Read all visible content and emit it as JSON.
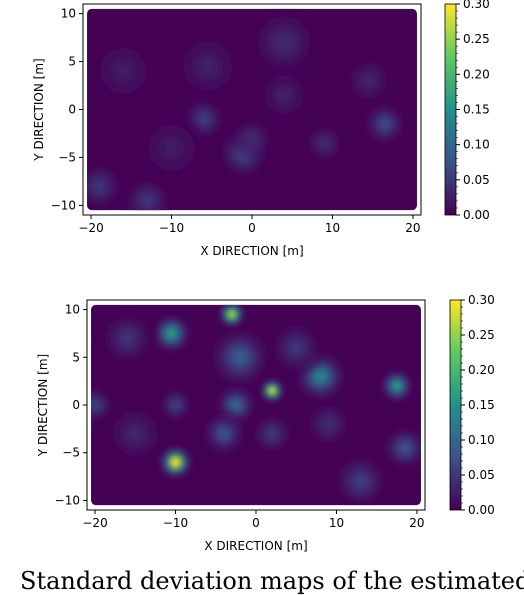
{
  "caption_fragment": "Standard deviation maps of the estimated l",
  "colormap": {
    "name": "viridis",
    "stops": [
      "#440154",
      "#3b528b",
      "#21918c",
      "#5ec962",
      "#fde725"
    ]
  },
  "chart_data": [
    {
      "type": "heatmap",
      "title": "",
      "xlabel": "X DIRECTION [m]",
      "ylabel": "Y DIRECTION [m]",
      "xlim": [
        -21,
        21
      ],
      "ylim": [
        -11,
        11
      ],
      "x_ticks": [
        -20,
        -10,
        0,
        10,
        20
      ],
      "y_ticks": [
        -10,
        -5,
        0,
        5,
        10
      ],
      "x_tick_labels": [
        "−20",
        "−10",
        "0",
        "10",
        "20"
      ],
      "y_tick_labels": [
        "−10",
        "−5",
        "0",
        "5",
        "10"
      ],
      "domain": {
        "x": [
          -20.5,
          20.5
        ],
        "y": [
          -10.5,
          10.5
        ]
      },
      "background_value": 0.0,
      "colorbar": {
        "range": [
          0.0,
          0.3
        ],
        "ticks": [
          0.0,
          0.05,
          0.1,
          0.15,
          0.2,
          0.25,
          0.3
        ],
        "tick_labels": [
          "0.00",
          "0.05",
          "0.10",
          "0.15",
          "0.20",
          "0.25",
          "0.30"
        ]
      },
      "hotspots": [
        {
          "x": -6,
          "y": -1,
          "value": 0.06,
          "spread": 1.6
        },
        {
          "x": -1,
          "y": -4.5,
          "value": 0.08,
          "spread": 1.8
        },
        {
          "x": 0,
          "y": -3,
          "value": 0.04,
          "spread": 1.6
        },
        {
          "x": 4,
          "y": 7,
          "value": 0.04,
          "spread": 2.5
        },
        {
          "x": 9,
          "y": -3.5,
          "value": 0.04,
          "spread": 1.5
        },
        {
          "x": 16.5,
          "y": -1.5,
          "value": 0.07,
          "spread": 1.6
        },
        {
          "x": 14.5,
          "y": 3,
          "value": 0.035,
          "spread": 1.8
        },
        {
          "x": -19,
          "y": -8,
          "value": 0.05,
          "spread": 1.8
        },
        {
          "x": -13,
          "y": -9.5,
          "value": 0.05,
          "spread": 1.8
        },
        {
          "x": -5.5,
          "y": 4.5,
          "value": 0.03,
          "spread": 2.5
        },
        {
          "x": 4,
          "y": 1.5,
          "value": 0.03,
          "spread": 2.0
        },
        {
          "x": -16,
          "y": 4,
          "value": 0.025,
          "spread": 2.5
        },
        {
          "x": -10,
          "y": -4,
          "value": 0.025,
          "spread": 2.5
        }
      ]
    },
    {
      "type": "heatmap",
      "title": "",
      "xlabel": "X DIRECTION [m]",
      "ylabel": "Y DIRECTION [m]",
      "xlim": [
        -21,
        21
      ],
      "ylim": [
        -11,
        11
      ],
      "x_ticks": [
        -20,
        -10,
        0,
        10,
        20
      ],
      "y_ticks": [
        -10,
        -5,
        0,
        5,
        10
      ],
      "x_tick_labels": [
        "−20",
        "−10",
        "0",
        "10",
        "20"
      ],
      "y_tick_labels": [
        "−10",
        "−5",
        "0",
        "5",
        "10"
      ],
      "domain": {
        "x": [
          -20.5,
          20.5
        ],
        "y": [
          -10.5,
          10.5
        ]
      },
      "background_value": 0.0,
      "colorbar": {
        "range": [
          0.0,
          0.3
        ],
        "ticks": [
          0.0,
          0.05,
          0.1,
          0.15,
          0.2,
          0.25,
          0.3
        ],
        "tick_labels": [
          "0.00",
          "0.05",
          "0.10",
          "0.15",
          "0.20",
          "0.25",
          "0.30"
        ]
      },
      "hotspots": [
        {
          "x": -10,
          "y": -6,
          "value": 0.3,
          "spread": 1.2
        },
        {
          "x": 2,
          "y": 1.5,
          "value": 0.28,
          "spread": 0.9
        },
        {
          "x": -3,
          "y": 9.5,
          "value": 0.26,
          "spread": 1.0
        },
        {
          "x": -10.5,
          "y": 7.5,
          "value": 0.17,
          "spread": 1.4
        },
        {
          "x": 17.5,
          "y": 2,
          "value": 0.17,
          "spread": 1.2
        },
        {
          "x": 8,
          "y": 3,
          "value": 0.14,
          "spread": 1.8
        },
        {
          "x": -2,
          "y": 5,
          "value": 0.09,
          "spread": 2.2
        },
        {
          "x": -2.5,
          "y": 0,
          "value": 0.1,
          "spread": 1.5
        },
        {
          "x": -4,
          "y": -3,
          "value": 0.08,
          "spread": 1.6
        },
        {
          "x": -10,
          "y": 0,
          "value": 0.06,
          "spread": 1.3
        },
        {
          "x": -20,
          "y": 0,
          "value": 0.06,
          "spread": 1.4
        },
        {
          "x": -16,
          "y": 7,
          "value": 0.05,
          "spread": 2.0
        },
        {
          "x": 13,
          "y": -8,
          "value": 0.06,
          "spread": 2.0
        },
        {
          "x": 18.5,
          "y": -4.5,
          "value": 0.08,
          "spread": 1.6
        },
        {
          "x": 5,
          "y": 6,
          "value": 0.05,
          "spread": 2.0
        },
        {
          "x": 2,
          "y": -3,
          "value": 0.05,
          "spread": 1.6
        },
        {
          "x": 9,
          "y": -2,
          "value": 0.04,
          "spread": 1.8
        },
        {
          "x": -15,
          "y": -3,
          "value": 0.035,
          "spread": 2.2
        }
      ]
    }
  ]
}
